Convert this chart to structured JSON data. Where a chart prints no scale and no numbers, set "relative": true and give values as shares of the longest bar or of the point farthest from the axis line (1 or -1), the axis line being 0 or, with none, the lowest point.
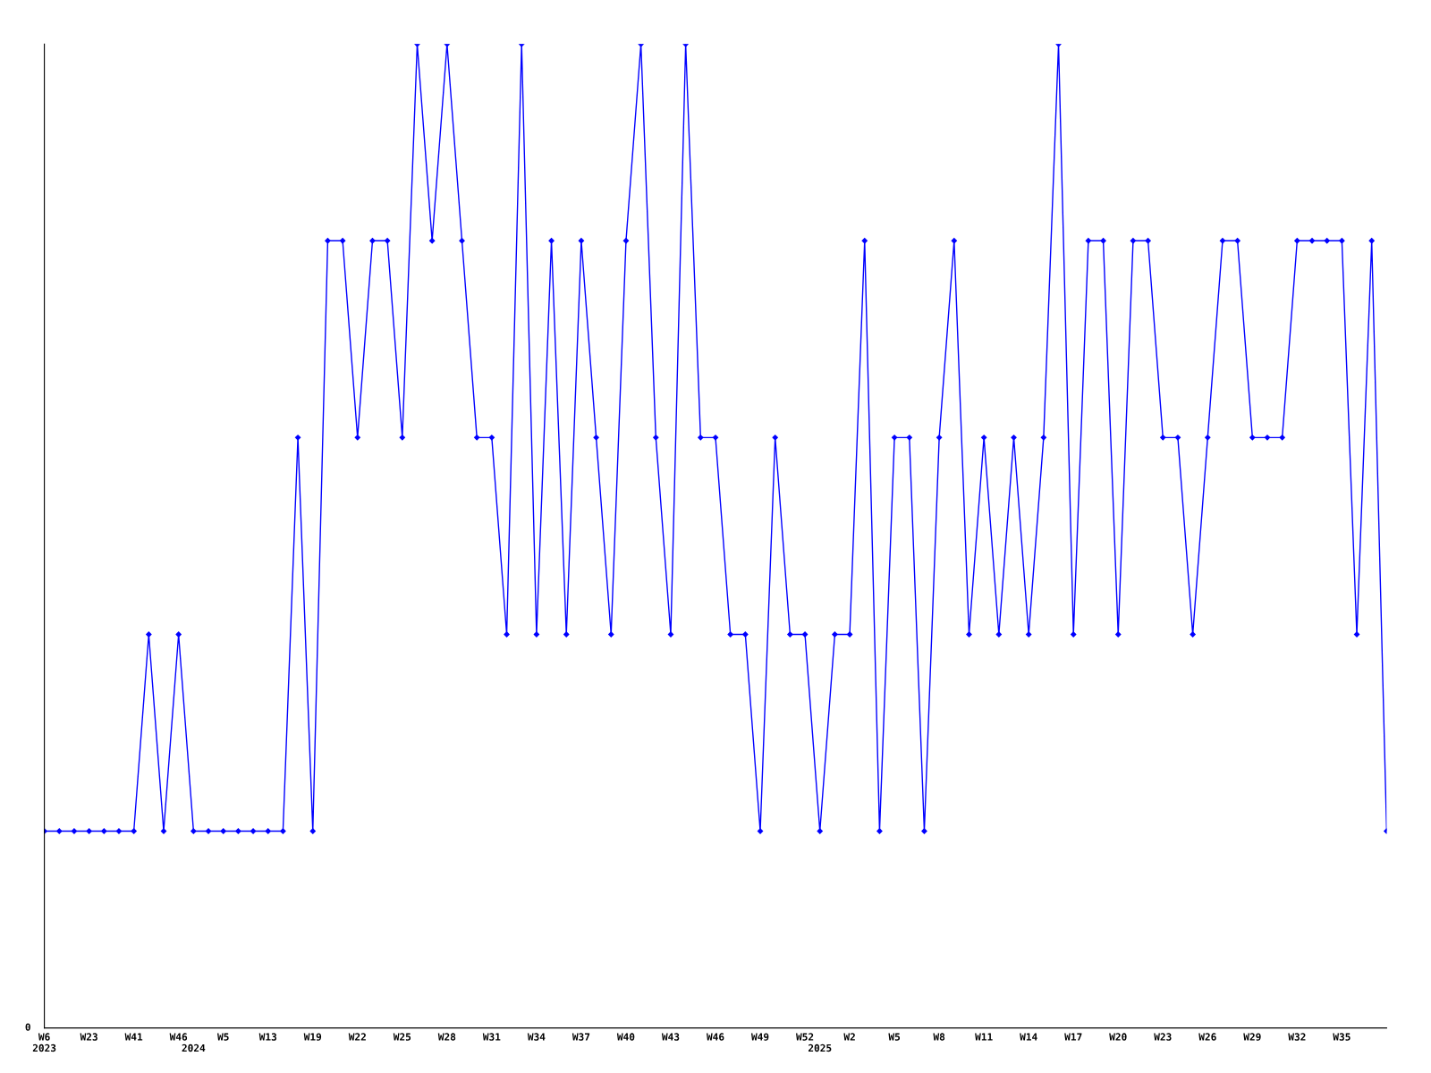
{
  "chart_data": {
    "type": "line",
    "relative": true,
    "color": "#0000ff",
    "marker": "diamond",
    "grid": false,
    "annotations": [
      "0"
    ],
    "categories": [
      "W6\n2023",
      null,
      null,
      "W23",
      null,
      null,
      "W41",
      null,
      null,
      "W46",
      "\n2024",
      null,
      "W5",
      null,
      null,
      "W13",
      null,
      null,
      "W19",
      null,
      null,
      "W22",
      null,
      null,
      "W25",
      null,
      null,
      "W28",
      null,
      null,
      "W31",
      null,
      null,
      "W34",
      null,
      null,
      "W37",
      null,
      null,
      "W40",
      null,
      null,
      "W43",
      null,
      null,
      "W46",
      null,
      null,
      "W49",
      null,
      null,
      "W52",
      "\n2025",
      null,
      "W2",
      null,
      null,
      "W5",
      null,
      null,
      "W8",
      null,
      null,
      "W11",
      null,
      null,
      "W14",
      null,
      null,
      "W17",
      null,
      null,
      "W20",
      null,
      null,
      "W23",
      null,
      null,
      "W26",
      null,
      null,
      "W29",
      null,
      null,
      "W32",
      null,
      null,
      "W35",
      null,
      null,
      null
    ],
    "values": [
      0.2,
      0.2,
      0.2,
      0.2,
      0.2,
      0.2,
      0.2,
      0.4,
      0.2,
      0.4,
      0.2,
      0.2,
      0.2,
      0.2,
      0.2,
      0.2,
      0.2,
      0.6,
      0.2,
      0.8,
      0.8,
      0.6,
      0.8,
      0.8,
      0.6,
      1,
      0.8,
      1,
      0.8,
      0.6,
      0.6,
      0.4,
      1,
      0.4,
      0.8,
      0.4,
      0.8,
      0.6,
      0.4,
      0.8,
      1,
      0.6,
      0.4,
      1,
      0.6,
      0.6,
      0.4,
      0.4,
      0.2,
      0.6,
      0.4,
      0.4,
      0.2,
      0.4,
      0.4,
      0.8,
      0.2,
      0.6,
      0.6,
      0.2,
      0.6,
      0.8,
      0.4,
      0.6,
      0.4,
      0.6,
      0.4,
      0.6,
      1,
      0.4,
      0.8,
      0.8,
      0.4,
      0.8,
      0.8,
      0.6,
      0.6,
      0.4,
      0.6,
      0.8,
      0.8,
      0.6,
      0.6,
      0.6,
      0.8,
      0.8,
      0.8,
      0.8,
      0.4,
      0.8,
      0.2
    ]
  }
}
